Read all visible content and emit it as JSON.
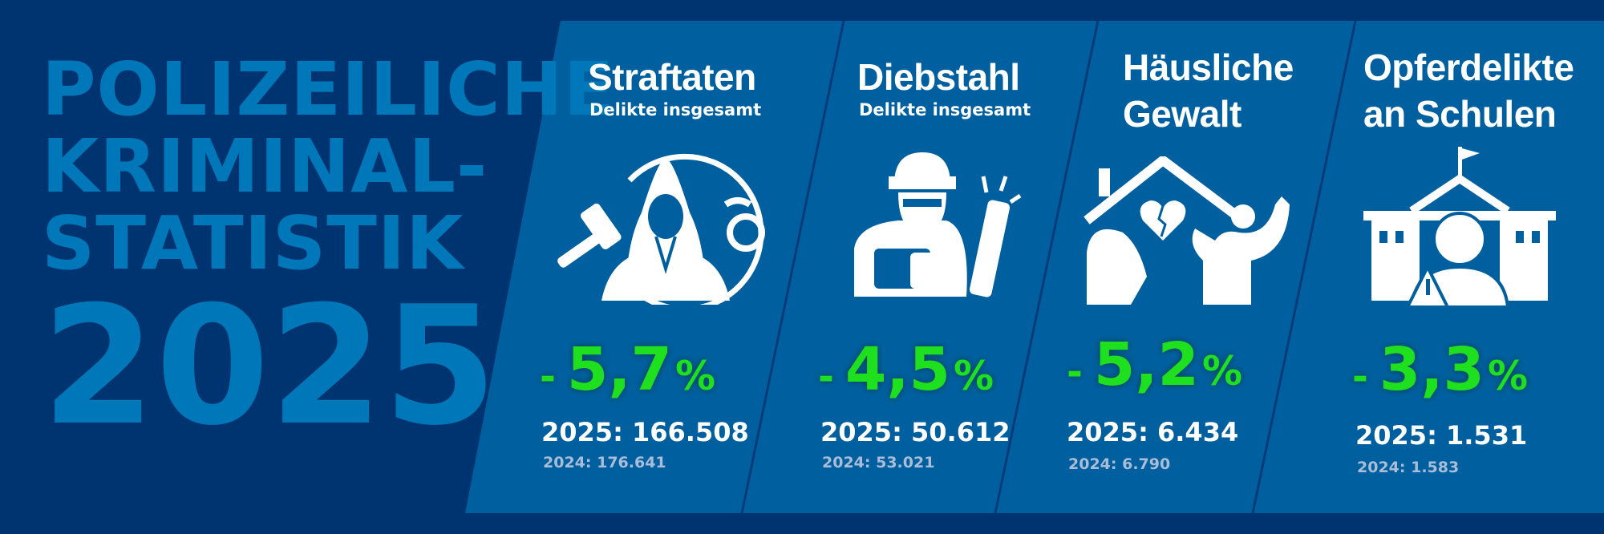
{
  "colors": {
    "background": "#003470",
    "panel": "#00609f",
    "heading": "#0077b8",
    "change": "#1ee01e",
    "previous": "#a9bdd8"
  },
  "heading": {
    "line1": "POLIZEILICHE",
    "line2": "KRIMINAL-",
    "line3": "STATISTIK",
    "year": "2025"
  },
  "cards": [
    {
      "title": "Straftaten",
      "title2": "",
      "subtitle": "Delikte insgesamt",
      "icon": "hooded-criminal-gavel-handcuffs-icon",
      "minus": "-",
      "change": "5,7",
      "unit": "%",
      "current": "2025: 166.508",
      "previous": "2024: 176.641"
    },
    {
      "title": "Diebstahl",
      "title2": "",
      "subtitle": "Delikte insgesamt",
      "icon": "masked-thief-flashlight-icon",
      "minus": "-",
      "change": "4,5",
      "unit": "%",
      "current": "2025: 50.612",
      "previous": "2024: 53.021"
    },
    {
      "title": "Häusliche",
      "title2": "Gewalt",
      "subtitle": "",
      "icon": "house-broken-heart-violence-icon",
      "minus": "-",
      "change": "5,2",
      "unit": "%",
      "current": "2025: 6.434",
      "previous": "2024: 6.790"
    },
    {
      "title": "Opferdelikte",
      "title2": "an Schulen",
      "subtitle": "",
      "icon": "school-student-warning-icon",
      "minus": "-",
      "change": "3,3",
      "unit": "%",
      "current": "2025: 1.531",
      "previous": "2024: 1.583"
    }
  ]
}
